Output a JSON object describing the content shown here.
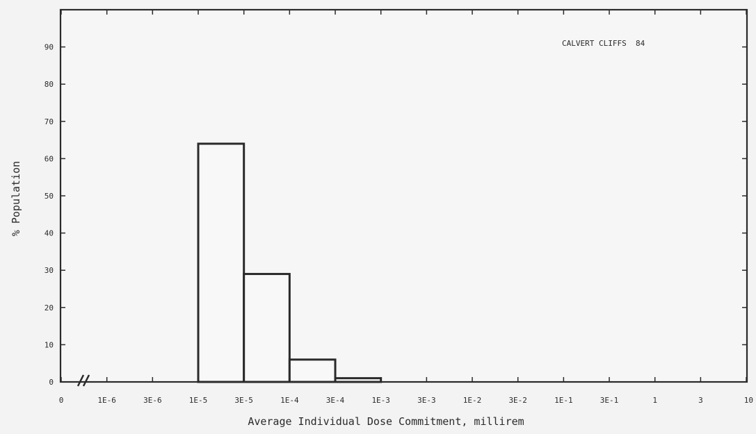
{
  "chart_data": {
    "type": "bar",
    "title": "CALVERT CLIFFS  84",
    "xlabel": "Average Individual Dose Commitment, millirem",
    "ylabel": "% Population",
    "x_ticks": [
      "0",
      "1E-6",
      "3E-6",
      "1E-5",
      "3E-5",
      "1E-4",
      "3E-4",
      "1E-3",
      "3E-3",
      "1E-2",
      "3E-2",
      "1E-1",
      "3E-1",
      "1",
      "3",
      "10"
    ],
    "y_ticks": [
      0,
      10,
      20,
      30,
      40,
      50,
      60,
      70,
      80,
      90
    ],
    "ylim": [
      0,
      100
    ],
    "bins": [
      {
        "from": "1E-5",
        "to": "3E-5",
        "value": 64
      },
      {
        "from": "3E-5",
        "to": "1E-4",
        "value": 29
      },
      {
        "from": "1E-4",
        "to": "3E-4",
        "value": 6
      },
      {
        "from": "3E-4",
        "to": "1E-3",
        "value": 1
      }
    ],
    "axis_break": true,
    "grid": false,
    "colors": {
      "background": "#f3f3f3",
      "plot": "#f6f6f6",
      "ink": "#2a2a2a"
    }
  }
}
